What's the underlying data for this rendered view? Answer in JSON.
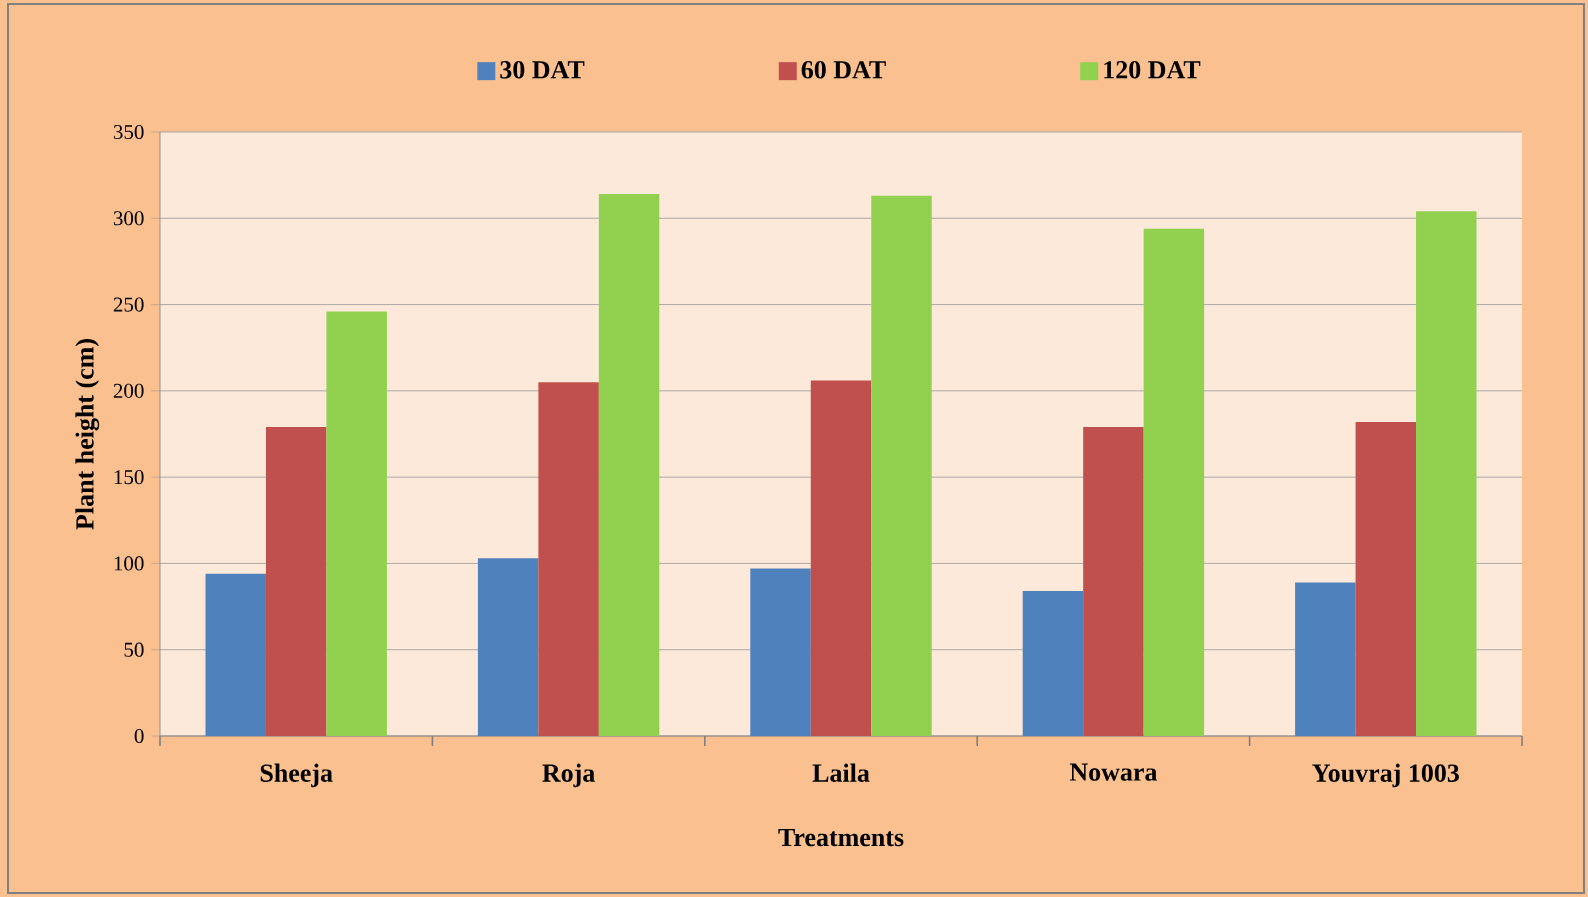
{
  "chart_data": {
    "type": "bar",
    "xlabel": "Treatments",
    "ylabel": "Plant height (cm)",
    "categories": [
      "Sheeja",
      "Roja",
      "Laila",
      "Nowara",
      "Youvraj 1003"
    ],
    "series": [
      {
        "name": "30 DAT",
        "color": "#4f81bd",
        "values": [
          94,
          103,
          97,
          84,
          89
        ]
      },
      {
        "name": "60 DAT",
        "color": "#c0504d",
        "values": [
          179,
          205,
          206,
          179,
          182
        ]
      },
      {
        "name": "120 DAT",
        "color": "#92d050",
        "values": [
          246,
          314,
          313,
          294,
          304
        ]
      }
    ],
    "ylim": [
      0,
      350
    ],
    "yticks": [
      0,
      50,
      100,
      150,
      200,
      250,
      300,
      350
    ],
    "grid": "y",
    "legend": "top"
  }
}
